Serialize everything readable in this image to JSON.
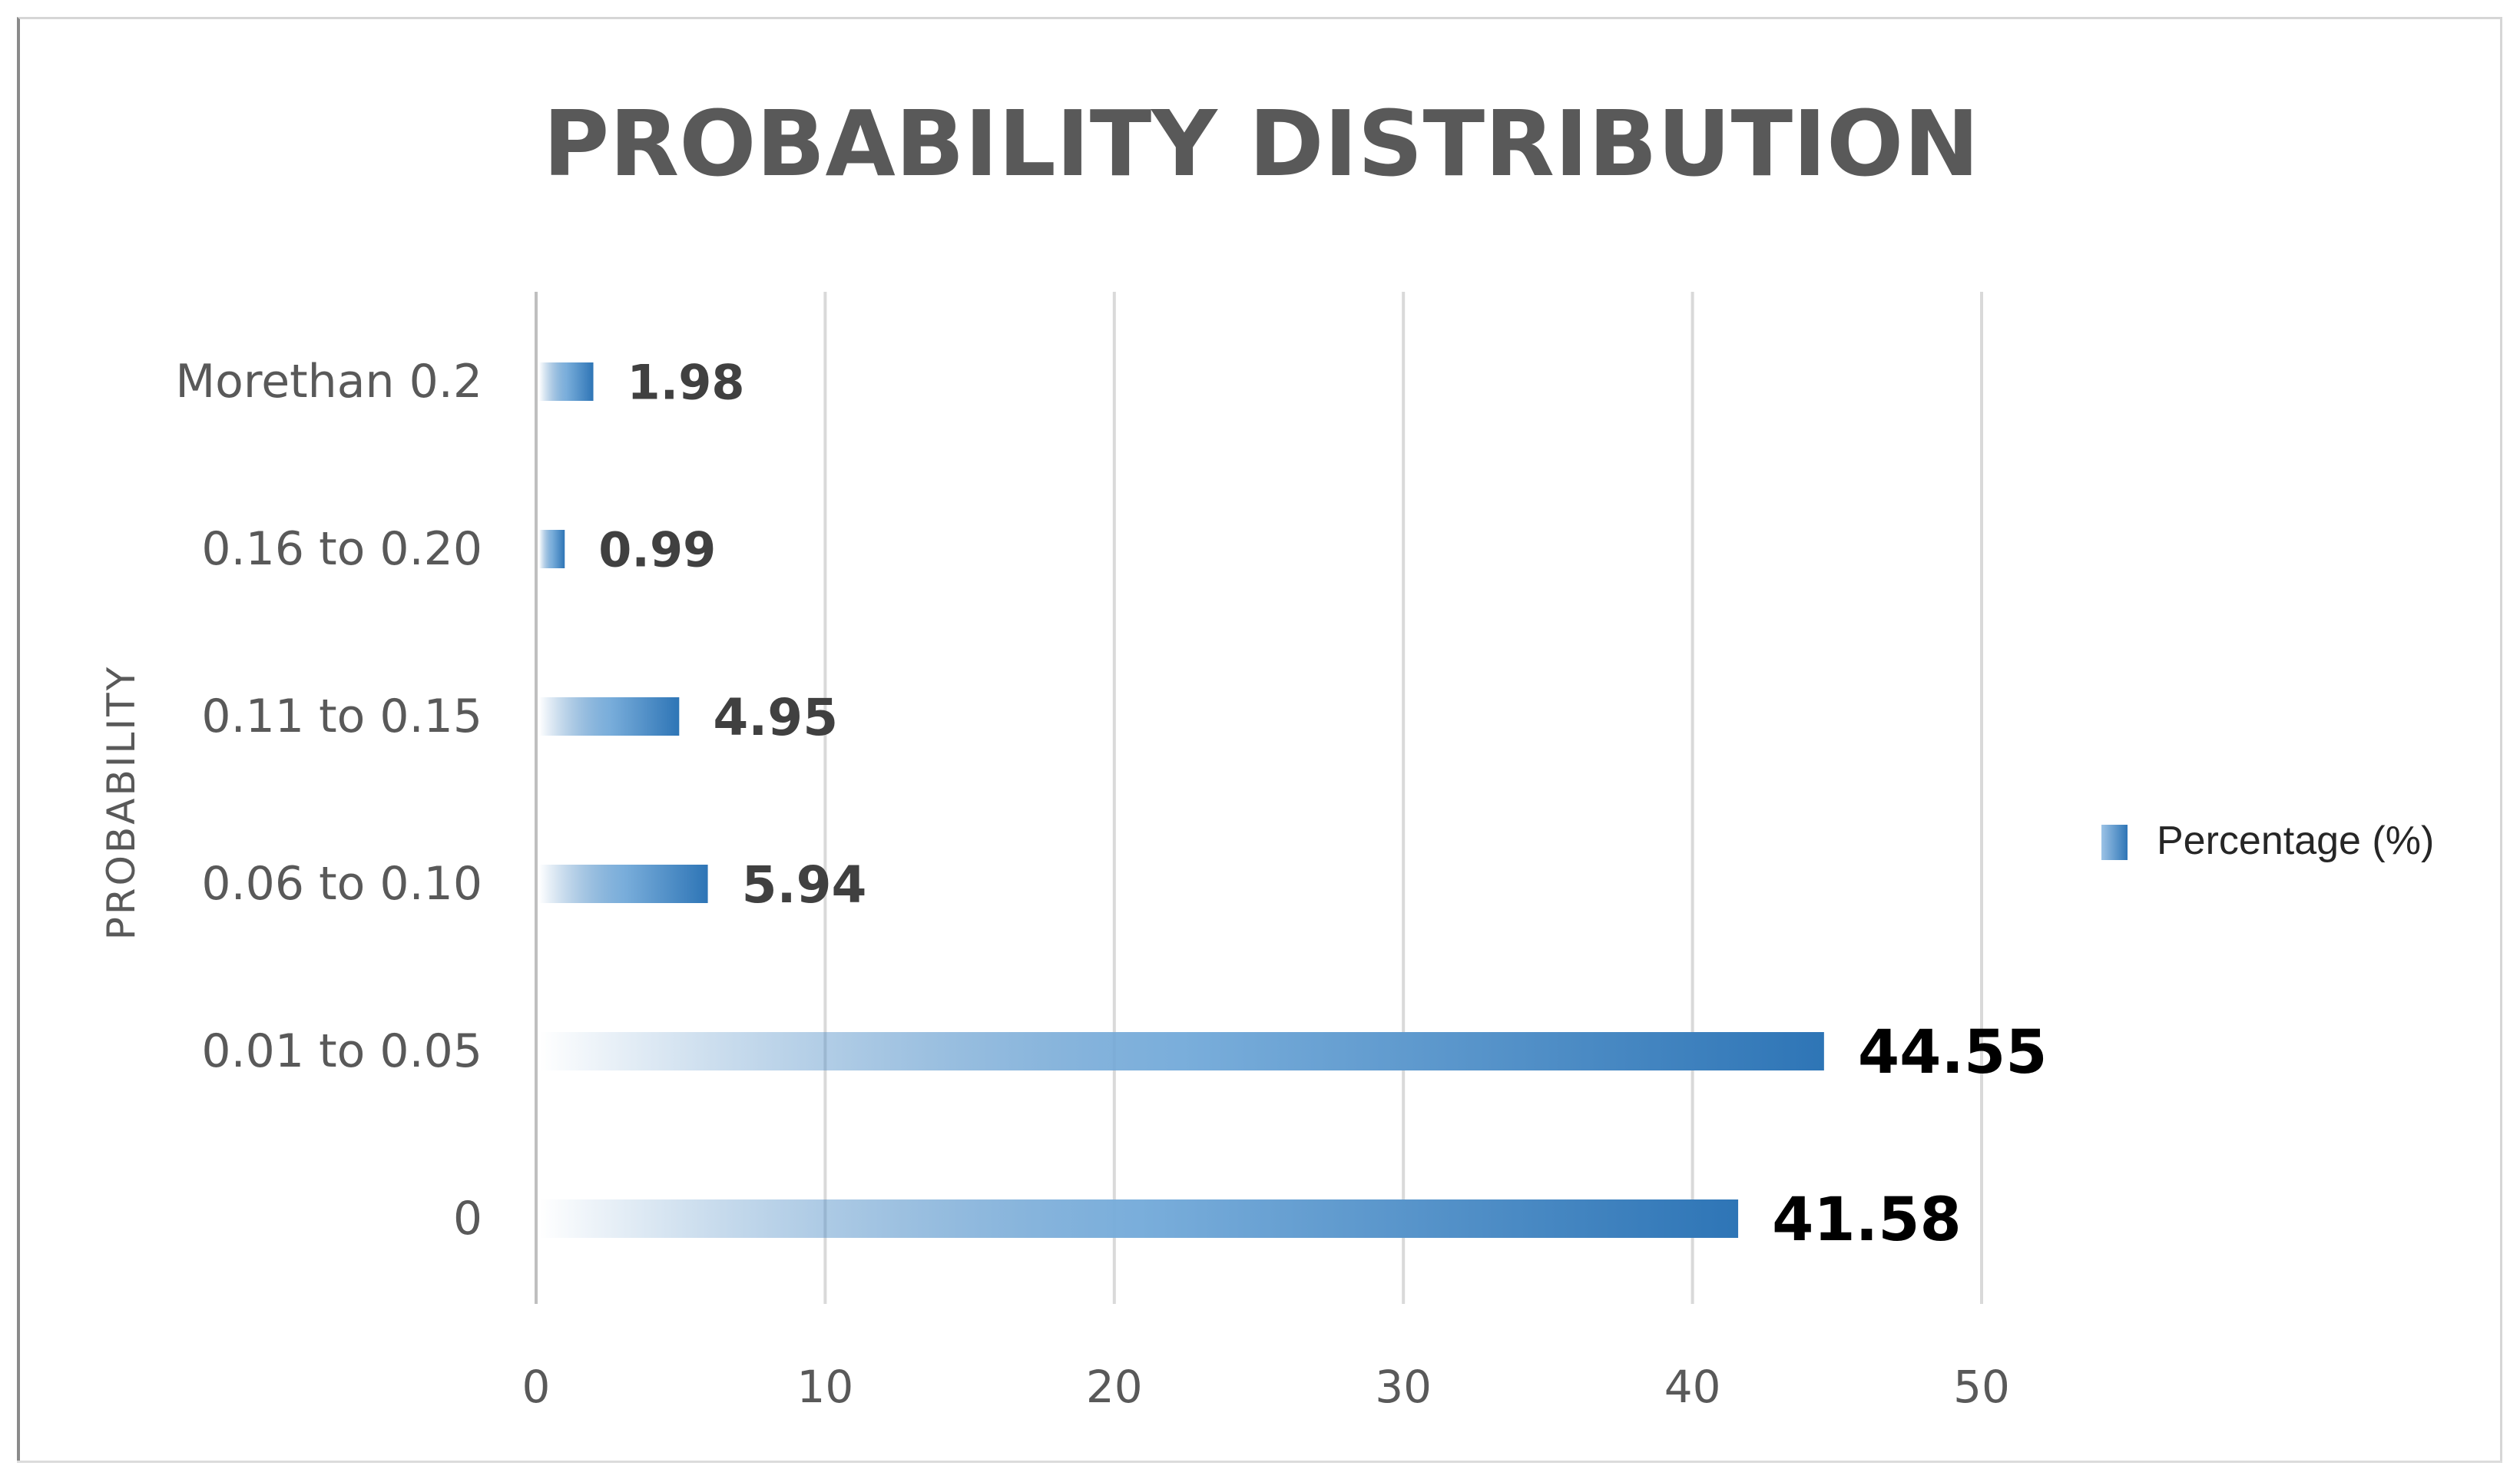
{
  "chart_data": {
    "type": "bar",
    "orientation": "horizontal",
    "title": "PROBABILITY DISTRIBUTION",
    "ylabel": "PROBABILITY",
    "xlabel": "",
    "categories": [
      "Morethan 0.2",
      "0.16 to 0.20",
      "0.11 to 0.15",
      "0.06 to 0.10",
      "0.01 to 0.05",
      "0"
    ],
    "series": [
      {
        "name": "Percentage (%)",
        "values": [
          1.98,
          0.99,
          4.95,
          5.94,
          44.55,
          41.58
        ],
        "labels": [
          "1.98",
          "0.99",
          "4.95",
          "5.94",
          "44.55",
          "41.58"
        ]
      }
    ],
    "xlim": [
      0,
      50
    ],
    "xticks": [
      "0",
      "10",
      "20",
      "30",
      "40",
      "50"
    ],
    "grid": "vertical",
    "legend_position": "right",
    "bar_color": "#2e75b6",
    "bar_fill": "gradient"
  }
}
